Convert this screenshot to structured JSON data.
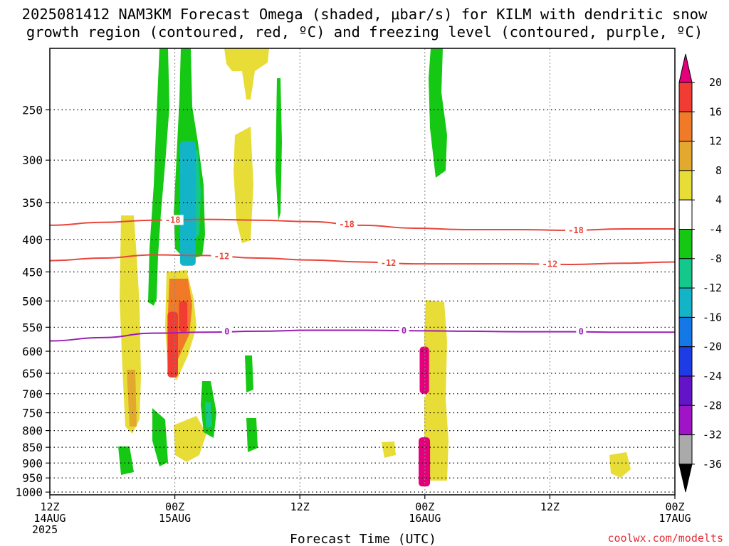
{
  "chart_data": {
    "type": "heatmap",
    "title_line1": "2025081412 NAM3KM Forecast Omega (shaded, μbar/s) for KILM with dendritic snow",
    "title_line2": "growth region (contoured, red, ºC) and freezing level (contoured, purple, ºC)",
    "xlabel": "Forecast Time (UTC)",
    "credit": "coolwx.com/modelts",
    "x_hours_range": [
      0,
      60
    ],
    "x_ticks": [
      {
        "hour": 0,
        "lines": [
          "12Z",
          "14AUG",
          "2025"
        ]
      },
      {
        "hour": 12,
        "lines": [
          "00Z",
          "15AUG"
        ]
      },
      {
        "hour": 24,
        "lines": [
          "12Z"
        ]
      },
      {
        "hour": 36,
        "lines": [
          "00Z",
          "16AUG"
        ]
      },
      {
        "hour": 48,
        "lines": [
          "12Z"
        ]
      },
      {
        "hour": 60,
        "lines": [
          "00Z",
          "17AUG"
        ]
      }
    ],
    "y_scale": "log-pressure",
    "y_range_hpa": [
      1010,
      200
    ],
    "y_ticks": [
      "250",
      "300",
      "350",
      "400",
      "450",
      "500",
      "550",
      "600",
      "650",
      "700",
      "750",
      "800",
      "850",
      "900",
      "950",
      "1000"
    ],
    "colorbar_labels": [
      "20",
      "16",
      "12",
      "8",
      "4",
      "-4",
      "-8",
      "-12",
      "-16",
      "-20",
      "-24",
      "-28",
      "-32",
      "-36"
    ],
    "colorbar_colors": [
      "#e4007c",
      "#f03c32",
      "#f07a28",
      "#e3a92e",
      "#e8dc37",
      "#ffffff",
      "#14c814",
      "#14c88c",
      "#14b4c8",
      "#1478e6",
      "#1e3ce6",
      "#6414c8",
      "#a014c8",
      "#aaaaaa",
      "#000000"
    ],
    "contours": [
      {
        "label": "-18",
        "color": "#e8463c",
        "pressure_hpa": [
          380,
          376,
          373,
          372,
          373,
          375,
          380,
          384,
          386,
          386,
          387,
          385,
          385
        ],
        "label_hours": [
          11.8,
          28.5,
          50.5
        ]
      },
      {
        "label": "-12",
        "color": "#e8463c",
        "pressure_hpa": [
          432,
          428,
          423,
          424,
          428,
          431,
          434,
          437,
          437,
          437,
          438,
          436,
          434
        ],
        "label_hours": [
          16.5,
          32.5,
          48.0
        ]
      },
      {
        "label": "0",
        "color": "#9b1eb4",
        "pressure_hpa": [
          578,
          571,
          562,
          560,
          558,
          556,
          556,
          557,
          558,
          559,
          559,
          560,
          560
        ],
        "label_hours": [
          17.0,
          34.0,
          51.0
        ]
      }
    ],
    "omega_cells": [
      {
        "h0": 11.3,
        "h1": 12.3,
        "p0": 520,
        "p1": 660,
        "value": 16
      },
      {
        "h0": 12.4,
        "h1": 13.2,
        "p0": 500,
        "p1": 560,
        "value": 16
      },
      {
        "h0": 35.5,
        "h1": 36.4,
        "p0": 590,
        "p1": 700,
        "value": 20
      },
      {
        "h0": 35.4,
        "h1": 36.5,
        "p0": 820,
        "p1": 980,
        "value": 20
      },
      {
        "h0": 12.5,
        "h1": 14.0,
        "p0": 280,
        "p1": 440,
        "value": -12
      }
    ],
    "ground_color": "#a0522d"
  }
}
